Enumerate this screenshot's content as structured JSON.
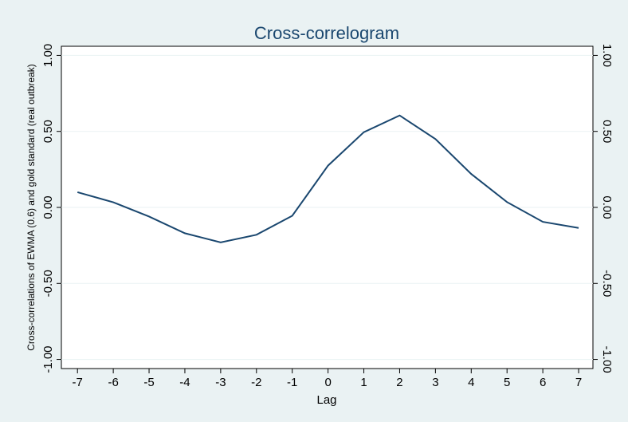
{
  "chart_data": {
    "type": "line",
    "title": "Cross-correlogram",
    "x_label": "Lag",
    "y_label": "Cross-correlations of EWMA (0.6) and gold standard (real outbreak)",
    "x": [
      -7,
      -6,
      -5,
      -4,
      -3,
      -2,
      -1,
      0,
      1,
      2,
      3,
      4,
      5,
      6,
      7
    ],
    "series": [
      {
        "color": "#1a476f",
        "values": [
          0.1,
          0.034,
          -0.06,
          -0.17,
          -0.23,
          -0.18,
          -0.055,
          0.275,
          0.495,
          0.605,
          0.45,
          0.22,
          0.035,
          -0.095,
          -0.135
        ]
      }
    ],
    "xlim": [
      -7.45,
      7.4
    ],
    "xticks": [
      -7,
      -6,
      -5,
      -4,
      -3,
      -2,
      -1,
      0,
      1,
      2,
      3,
      4,
      5,
      6,
      7
    ],
    "ylim": [
      -1.06,
      1.06
    ],
    "yticks": [
      {
        "value": -1,
        "label": "-1.00"
      },
      {
        "value": -0.5,
        "label": "-0.50"
      },
      {
        "value": 0,
        "label": "0.00"
      },
      {
        "value": 0.5,
        "label": "0.50"
      },
      {
        "value": 1,
        "label": "1.00"
      }
    ],
    "y2lim": [
      -1.06,
      1.06
    ],
    "y2ticks": [
      {
        "value": -1,
        "label": "-1.00"
      },
      {
        "value": -0.5,
        "label": "-0.50"
      },
      {
        "value": 0,
        "label": "0.00"
      },
      {
        "value": 0.5,
        "label": "0.50"
      },
      {
        "value": 1,
        "label": "1.00"
      }
    ],
    "grid": true
  }
}
